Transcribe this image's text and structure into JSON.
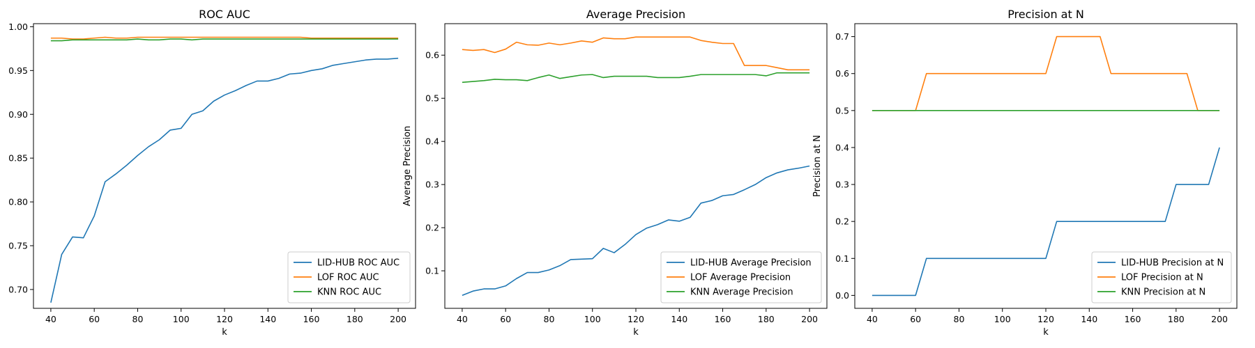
{
  "chart_data": [
    {
      "type": "line",
      "title": "ROC AUC",
      "xlabel": "k",
      "ylabel": "ROC AUC",
      "xlim": [
        32,
        208
      ],
      "ylim": [
        0.6785,
        1.0035
      ],
      "xticks": [
        40,
        60,
        80,
        100,
        120,
        140,
        160,
        180,
        200
      ],
      "yticks": [
        0.7,
        0.75,
        0.8,
        0.85,
        0.9,
        0.95,
        1.0
      ],
      "ytick_decimals": 2,
      "legend_position": "lower-right",
      "x": [
        40,
        45,
        50,
        55,
        60,
        65,
        70,
        75,
        80,
        85,
        90,
        95,
        100,
        105,
        110,
        115,
        120,
        125,
        130,
        135,
        140,
        145,
        150,
        155,
        160,
        165,
        170,
        175,
        180,
        185,
        190,
        195,
        200
      ],
      "series": [
        {
          "name": "LID-HUB ROC AUC",
          "color": "#1f77b4",
          "values": [
            0.685,
            0.74,
            0.76,
            0.759,
            0.784,
            0.823,
            0.832,
            0.842,
            0.853,
            0.863,
            0.871,
            0.882,
            0.884,
            0.9,
            0.904,
            0.915,
            0.922,
            0.927,
            0.933,
            0.938,
            0.938,
            0.941,
            0.946,
            0.947,
            0.95,
            0.952,
            0.956,
            0.958,
            0.96,
            0.962,
            0.963,
            0.963,
            0.964
          ]
        },
        {
          "name": "LOF ROC AUC",
          "color": "#ff7f0e",
          "values": [
            0.987,
            0.987,
            0.986,
            0.986,
            0.987,
            0.988,
            0.987,
            0.987,
            0.988,
            0.988,
            0.988,
            0.988,
            0.988,
            0.988,
            0.988,
            0.988,
            0.988,
            0.988,
            0.988,
            0.988,
            0.988,
            0.988,
            0.988,
            0.988,
            0.987,
            0.987,
            0.987,
            0.987,
            0.987,
            0.987,
            0.987,
            0.987,
            0.987
          ]
        },
        {
          "name": "KNN ROC AUC",
          "color": "#2ca02c",
          "values": [
            0.984,
            0.984,
            0.985,
            0.985,
            0.985,
            0.985,
            0.985,
            0.985,
            0.986,
            0.985,
            0.985,
            0.986,
            0.986,
            0.985,
            0.986,
            0.986,
            0.986,
            0.986,
            0.986,
            0.986,
            0.986,
            0.986,
            0.986,
            0.986,
            0.986,
            0.986,
            0.986,
            0.986,
            0.986,
            0.986,
            0.986,
            0.986,
            0.986
          ]
        }
      ]
    },
    {
      "type": "line",
      "title": "Average Precision",
      "xlabel": "k",
      "ylabel": "Average Precision",
      "xlim": [
        32,
        208
      ],
      "ylim": [
        0.013,
        0.673
      ],
      "xticks": [
        40,
        60,
        80,
        100,
        120,
        140,
        160,
        180,
        200
      ],
      "yticks": [
        0.1,
        0.2,
        0.3,
        0.4,
        0.5,
        0.6
      ],
      "ytick_decimals": 1,
      "legend_position": "lower-right",
      "x": [
        40,
        45,
        50,
        55,
        60,
        65,
        70,
        75,
        80,
        85,
        90,
        95,
        100,
        105,
        110,
        115,
        120,
        125,
        130,
        135,
        140,
        145,
        150,
        155,
        160,
        165,
        170,
        175,
        180,
        185,
        190,
        195,
        200
      ],
      "series": [
        {
          "name": "LID-HUB Average Precision",
          "color": "#1f77b4",
          "values": [
            0.043,
            0.053,
            0.058,
            0.058,
            0.065,
            0.082,
            0.096,
            0.096,
            0.102,
            0.112,
            0.126,
            0.127,
            0.128,
            0.152,
            0.142,
            0.161,
            0.184,
            0.199,
            0.207,
            0.218,
            0.215,
            0.224,
            0.257,
            0.263,
            0.274,
            0.277,
            0.288,
            0.3,
            0.316,
            0.327,
            0.334,
            0.338,
            0.343
          ]
        },
        {
          "name": "LOF Average Precision",
          "color": "#ff7f0e",
          "values": [
            0.613,
            0.611,
            0.613,
            0.606,
            0.614,
            0.63,
            0.624,
            0.623,
            0.628,
            0.624,
            0.628,
            0.633,
            0.63,
            0.64,
            0.638,
            0.638,
            0.642,
            0.642,
            0.642,
            0.642,
            0.642,
            0.642,
            0.634,
            0.63,
            0.627,
            0.627,
            0.576,
            0.576,
            0.576,
            0.571,
            0.566,
            0.566,
            0.566
          ]
        },
        {
          "name": "KNN Average Precision",
          "color": "#2ca02c",
          "values": [
            0.537,
            0.539,
            0.541,
            0.544,
            0.543,
            0.543,
            0.541,
            0.548,
            0.554,
            0.546,
            0.55,
            0.554,
            0.555,
            0.548,
            0.551,
            0.551,
            0.551,
            0.551,
            0.548,
            0.548,
            0.548,
            0.551,
            0.555,
            0.555,
            0.555,
            0.555,
            0.555,
            0.555,
            0.552,
            0.559,
            0.559,
            0.559,
            0.559
          ]
        }
      ]
    },
    {
      "type": "line",
      "title": "Precision at N",
      "xlabel": "k",
      "ylabel": "Precision at N",
      "xlim": [
        32,
        208
      ],
      "ylim": [
        -0.035,
        0.735
      ],
      "xticks": [
        40,
        60,
        80,
        100,
        120,
        140,
        160,
        180,
        200
      ],
      "yticks": [
        0.0,
        0.1,
        0.2,
        0.3,
        0.4,
        0.5,
        0.6,
        0.7
      ],
      "ytick_decimals": 1,
      "legend_position": "lower-right",
      "x": [
        40,
        45,
        50,
        55,
        60,
        65,
        70,
        75,
        80,
        85,
        90,
        95,
        100,
        105,
        110,
        115,
        120,
        125,
        130,
        135,
        140,
        145,
        150,
        155,
        160,
        165,
        170,
        175,
        180,
        185,
        190,
        195,
        200
      ],
      "series": [
        {
          "name": "LID-HUB Precision at N",
          "color": "#1f77b4",
          "values": [
            0.0,
            0.0,
            0.0,
            0.0,
            0.0,
            0.1,
            0.1,
            0.1,
            0.1,
            0.1,
            0.1,
            0.1,
            0.1,
            0.1,
            0.1,
            0.1,
            0.1,
            0.2,
            0.2,
            0.2,
            0.2,
            0.2,
            0.2,
            0.2,
            0.2,
            0.2,
            0.2,
            0.2,
            0.3,
            0.3,
            0.3,
            0.3,
            0.4
          ]
        },
        {
          "name": "LOF Precision at N",
          "color": "#ff7f0e",
          "values": [
            0.5,
            0.5,
            0.5,
            0.5,
            0.5,
            0.6,
            0.6,
            0.6,
            0.6,
            0.6,
            0.6,
            0.6,
            0.6,
            0.6,
            0.6,
            0.6,
            0.6,
            0.7,
            0.7,
            0.7,
            0.7,
            0.7,
            0.6,
            0.6,
            0.6,
            0.6,
            0.6,
            0.6,
            0.6,
            0.6,
            0.5,
            0.5,
            0.5
          ]
        },
        {
          "name": "KNN Precision at N",
          "color": "#2ca02c",
          "values": [
            0.5,
            0.5,
            0.5,
            0.5,
            0.5,
            0.5,
            0.5,
            0.5,
            0.5,
            0.5,
            0.5,
            0.5,
            0.5,
            0.5,
            0.5,
            0.5,
            0.5,
            0.5,
            0.5,
            0.5,
            0.5,
            0.5,
            0.5,
            0.5,
            0.5,
            0.5,
            0.5,
            0.5,
            0.5,
            0.5,
            0.5,
            0.5,
            0.5
          ]
        }
      ]
    }
  ]
}
